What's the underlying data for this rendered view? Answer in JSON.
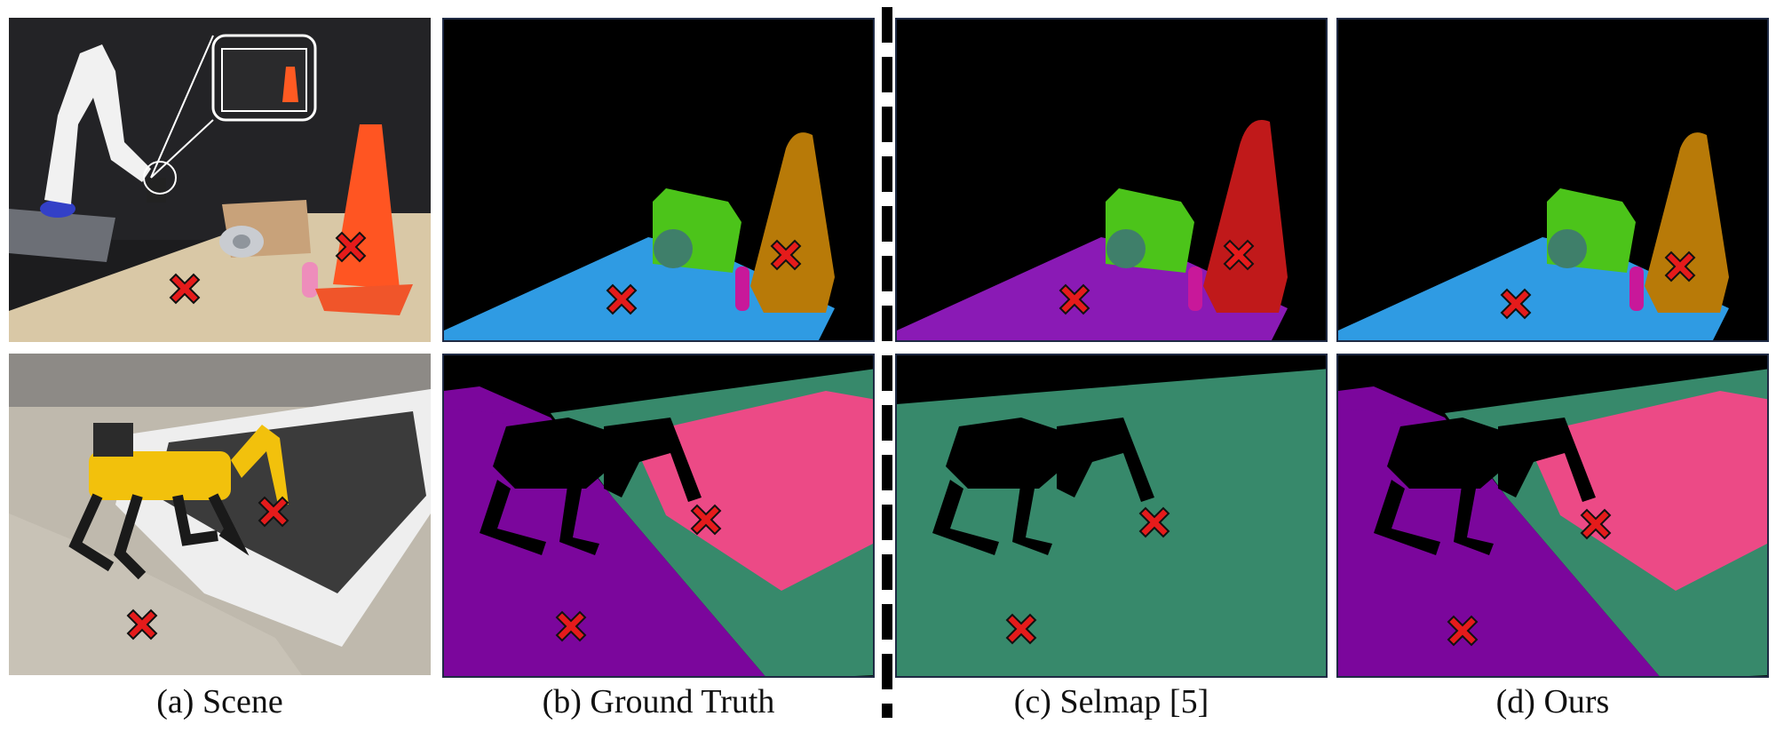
{
  "figure": {
    "captions": {
      "scene": "(a) Scene",
      "ground_truth": "(b) Ground Truth",
      "selmap": "(c) Selmap [5]",
      "ours": "(d) Ours"
    },
    "marker_icon": "red-x-marker-icon",
    "colors": {
      "background_black": "#000000",
      "table_blue": "#2f9be3",
      "table_purple": "#8a1ab5",
      "box_green": "#4cc41a",
      "ring_teal": "#3f7f6a",
      "bottle_magenta": "#c8189a",
      "cone_gold": "#b87a08",
      "cone_red": "#c0191a",
      "floor_purple": "#7b069c",
      "mat_green": "#37896b",
      "mat_pink": "#ec4a86",
      "marker_red": "#e51b1b"
    }
  }
}
